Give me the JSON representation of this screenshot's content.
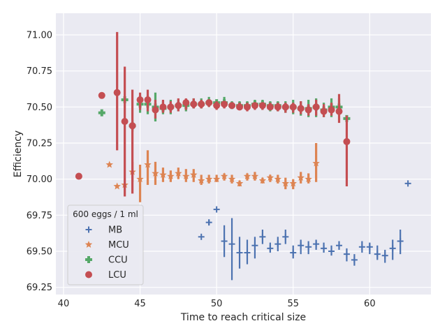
{
  "chart_data": {
    "type": "scatter",
    "title": "",
    "xlabel": "Time to reach critical size",
    "ylabel": "Efficiency",
    "xlim": [
      39.5,
      64.0
    ],
    "ylim": [
      69.2,
      71.15
    ],
    "xticks": [
      40,
      45,
      50,
      55,
      60
    ],
    "yticks": [
      "69.25",
      "69.50",
      "69.75",
      "70.00",
      "70.25",
      "70.50",
      "70.75",
      "71.00"
    ],
    "grid": true,
    "legend": {
      "title": "600 eggs / 1 ml",
      "placement": "lower-left"
    },
    "series": [
      {
        "name": "MB",
        "marker": "plus",
        "color": "#4c72b0",
        "points": [
          [
            49.0,
            69.6,
            69.6,
            69.6
          ],
          [
            49.5,
            69.7,
            69.68,
            69.72
          ],
          [
            50.0,
            69.79,
            69.79,
            69.79
          ],
          [
            50.5,
            69.57,
            69.46,
            69.68
          ],
          [
            51.0,
            69.55,
            69.3,
            69.73
          ],
          [
            51.5,
            69.49,
            69.38,
            69.6
          ],
          [
            52.0,
            69.49,
            69.41,
            69.58
          ],
          [
            52.5,
            69.54,
            69.45,
            69.6
          ],
          [
            53.0,
            69.6,
            69.55,
            69.65
          ],
          [
            53.5,
            69.52,
            69.49,
            69.56
          ],
          [
            54.0,
            69.55,
            69.5,
            69.6
          ],
          [
            54.5,
            69.6,
            69.55,
            69.65
          ],
          [
            55.0,
            69.49,
            69.45,
            69.54
          ],
          [
            55.5,
            69.54,
            69.48,
            69.58
          ],
          [
            56.0,
            69.53,
            69.48,
            69.57
          ],
          [
            56.5,
            69.55,
            69.51,
            69.58
          ],
          [
            57.0,
            69.52,
            69.49,
            69.56
          ],
          [
            57.5,
            69.5,
            69.47,
            69.54
          ],
          [
            58.0,
            69.54,
            69.51,
            69.57
          ],
          [
            58.5,
            69.48,
            69.43,
            69.52
          ],
          [
            59.0,
            69.44,
            69.4,
            69.48
          ],
          [
            59.5,
            69.53,
            69.49,
            69.57
          ],
          [
            60.0,
            69.53,
            69.48,
            69.56
          ],
          [
            60.5,
            69.48,
            69.44,
            69.54
          ],
          [
            61.0,
            69.47,
            69.42,
            69.51
          ],
          [
            61.5,
            69.52,
            69.44,
            69.58
          ],
          [
            62.0,
            69.57,
            69.48,
            69.65
          ],
          [
            62.5,
            69.97,
            69.97,
            69.97
          ]
        ]
      },
      {
        "name": "MCU",
        "marker": "star",
        "color": "#dd8452",
        "points": [
          [
            43.0,
            70.1,
            70.1,
            70.1
          ],
          [
            43.5,
            69.95,
            69.95,
            69.95
          ],
          [
            44.0,
            69.96,
            69.96,
            69.96
          ],
          [
            44.5,
            70.05,
            69.98,
            70.12
          ],
          [
            45.0,
            70.0,
            69.84,
            70.1
          ],
          [
            45.5,
            70.1,
            69.96,
            70.2
          ],
          [
            46.0,
            70.04,
            69.96,
            70.12
          ],
          [
            46.5,
            70.03,
            69.98,
            70.08
          ],
          [
            47.0,
            70.02,
            69.98,
            70.06
          ],
          [
            47.5,
            70.04,
            70.0,
            70.08
          ],
          [
            48.0,
            70.02,
            69.98,
            70.07
          ],
          [
            48.5,
            70.03,
            69.98,
            70.07
          ],
          [
            49.0,
            69.99,
            69.96,
            70.03
          ],
          [
            49.5,
            70.0,
            69.97,
            70.03
          ],
          [
            50.0,
            70.0,
            69.98,
            70.03
          ],
          [
            50.5,
            70.02,
            69.99,
            70.04
          ],
          [
            51.0,
            70.0,
            69.97,
            70.03
          ],
          [
            51.5,
            69.97,
            69.95,
            69.99
          ],
          [
            52.0,
            70.02,
            69.99,
            70.04
          ],
          [
            52.5,
            70.02,
            69.99,
            70.05
          ],
          [
            53.0,
            69.99,
            69.97,
            70.01
          ],
          [
            53.5,
            70.01,
            69.98,
            70.03
          ],
          [
            54.0,
            70.0,
            69.97,
            70.03
          ],
          [
            54.5,
            69.97,
            69.93,
            70.01
          ],
          [
            55.0,
            69.97,
            69.93,
            70.0
          ],
          [
            55.5,
            70.01,
            69.97,
            70.05
          ],
          [
            56.0,
            70.0,
            69.97,
            70.04
          ],
          [
            56.5,
            70.11,
            69.98,
            70.25
          ]
        ]
      },
      {
        "name": "CCU",
        "marker": "plus-filled",
        "color": "#55a868",
        "points": [
          [
            42.5,
            70.46,
            70.46,
            70.46
          ],
          [
            44.0,
            70.55,
            70.55,
            70.55
          ],
          [
            44.5,
            70.37,
            70.33,
            70.41
          ],
          [
            45.0,
            70.52,
            70.46,
            70.58
          ],
          [
            45.5,
            70.52,
            70.45,
            70.58
          ],
          [
            46.0,
            70.5,
            70.4,
            70.6
          ],
          [
            46.5,
            70.49,
            70.45,
            70.54
          ],
          [
            47.0,
            70.5,
            70.45,
            70.55
          ],
          [
            47.5,
            70.51,
            70.47,
            70.55
          ],
          [
            48.0,
            70.51,
            70.47,
            70.55
          ],
          [
            48.5,
            70.52,
            70.49,
            70.56
          ],
          [
            49.0,
            70.52,
            70.49,
            70.56
          ],
          [
            49.5,
            70.53,
            70.5,
            70.57
          ],
          [
            50.0,
            70.53,
            70.5,
            70.55
          ],
          [
            50.5,
            70.53,
            70.5,
            70.57
          ],
          [
            51.0,
            70.51,
            70.49,
            70.54
          ],
          [
            51.5,
            70.51,
            70.48,
            70.54
          ],
          [
            52.0,
            70.51,
            70.48,
            70.54
          ],
          [
            52.5,
            70.52,
            70.49,
            70.55
          ],
          [
            53.0,
            70.52,
            70.48,
            70.55
          ],
          [
            53.5,
            70.51,
            70.47,
            70.54
          ],
          [
            54.0,
            70.51,
            70.47,
            70.54
          ],
          [
            54.5,
            70.5,
            70.46,
            70.54
          ],
          [
            55.0,
            70.5,
            70.45,
            70.55
          ],
          [
            55.5,
            70.49,
            70.44,
            70.54
          ],
          [
            56.0,
            70.49,
            70.43,
            70.55
          ],
          [
            56.5,
            70.5,
            70.43,
            70.56
          ],
          [
            57.0,
            70.48,
            70.43,
            70.53
          ],
          [
            57.5,
            70.5,
            70.43,
            70.56
          ],
          [
            58.0,
            70.5,
            70.44,
            70.56
          ],
          [
            58.5,
            70.42,
            70.42,
            70.42
          ]
        ]
      },
      {
        "name": "LCU",
        "marker": "circle",
        "color": "#c44e52",
        "points": [
          [
            41.0,
            70.02,
            70.02,
            70.02
          ],
          [
            42.5,
            70.58,
            70.58,
            70.58
          ],
          [
            43.5,
            70.6,
            70.2,
            71.02
          ],
          [
            44.0,
            70.4,
            69.88,
            70.78
          ],
          [
            44.5,
            70.37,
            69.9,
            70.62
          ],
          [
            45.0,
            70.55,
            70.48,
            70.6
          ],
          [
            45.5,
            70.55,
            70.47,
            70.62
          ],
          [
            46.0,
            70.48,
            70.42,
            70.55
          ],
          [
            46.5,
            70.5,
            70.46,
            70.55
          ],
          [
            47.0,
            70.5,
            70.46,
            70.54
          ],
          [
            47.5,
            70.51,
            70.47,
            70.56
          ],
          [
            48.0,
            70.53,
            70.48,
            70.56
          ],
          [
            48.5,
            70.52,
            70.49,
            70.56
          ],
          [
            49.0,
            70.52,
            70.49,
            70.55
          ],
          [
            49.5,
            70.53,
            70.5,
            70.55
          ],
          [
            50.0,
            70.51,
            70.48,
            70.54
          ],
          [
            50.5,
            70.52,
            70.49,
            70.54
          ],
          [
            51.0,
            70.51,
            70.49,
            70.53
          ],
          [
            51.5,
            70.5,
            70.48,
            70.53
          ],
          [
            52.0,
            70.5,
            70.47,
            70.53
          ],
          [
            52.5,
            70.51,
            70.48,
            70.53
          ],
          [
            53.0,
            70.51,
            70.48,
            70.53
          ],
          [
            53.5,
            70.5,
            70.48,
            70.53
          ],
          [
            54.0,
            70.5,
            70.47,
            70.53
          ],
          [
            54.5,
            70.5,
            70.46,
            70.53
          ],
          [
            55.0,
            70.5,
            70.46,
            70.53
          ],
          [
            55.5,
            70.49,
            70.45,
            70.54
          ],
          [
            56.0,
            70.48,
            70.44,
            70.52
          ],
          [
            56.5,
            70.5,
            70.44,
            70.55
          ],
          [
            57.0,
            70.47,
            70.43,
            70.52
          ],
          [
            57.5,
            70.48,
            70.44,
            70.53
          ],
          [
            58.0,
            70.47,
            70.39,
            70.59
          ],
          [
            58.5,
            70.26,
            69.95,
            70.44
          ]
        ]
      }
    ]
  }
}
